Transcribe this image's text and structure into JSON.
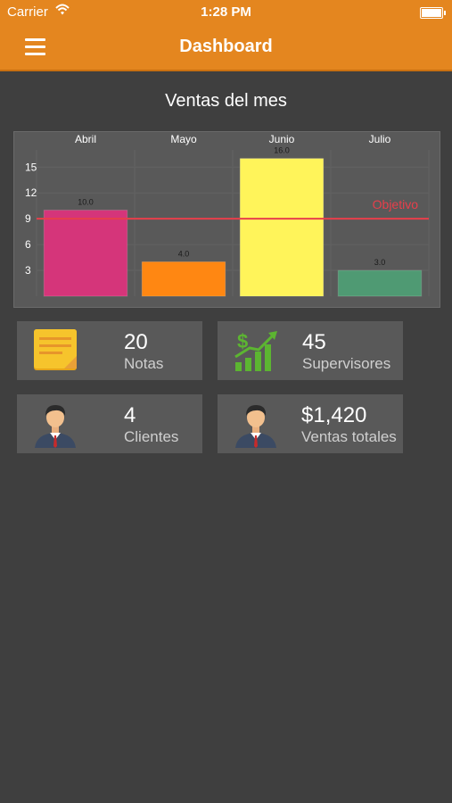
{
  "status_bar": {
    "carrier": "Carrier",
    "time": "1:28 PM"
  },
  "header": {
    "title": "Dashboard"
  },
  "section": {
    "title": "Ventas del mes"
  },
  "chart_data": {
    "type": "bar",
    "categories": [
      "Abril",
      "Mayo",
      "Junio",
      "Julio"
    ],
    "values": [
      10.0,
      4.0,
      16.0,
      3.0
    ],
    "value_labels": [
      "10.0",
      "4.0",
      "16.0",
      "3.0"
    ],
    "colors": [
      "#d5357a",
      "#ff8712",
      "#fff45a",
      "#4f9a73"
    ],
    "yticks": [
      3,
      6,
      9,
      12,
      15
    ],
    "ylim": [
      0,
      17
    ],
    "x_axis_position": "top",
    "limit_line": {
      "value": 9,
      "label": "Objetivo",
      "color": "#e83f4b"
    },
    "grid": true
  },
  "cards": [
    {
      "value": "20",
      "label": "Notas",
      "icon": "sticky-note-icon"
    },
    {
      "value": "45",
      "label": "Supervisores",
      "icon": "growth-chart-icon"
    },
    {
      "value": "4",
      "label": "Clientes",
      "icon": "person-icon"
    },
    {
      "value": "$1,420",
      "label": "Ventas totales",
      "icon": "person-icon"
    }
  ]
}
